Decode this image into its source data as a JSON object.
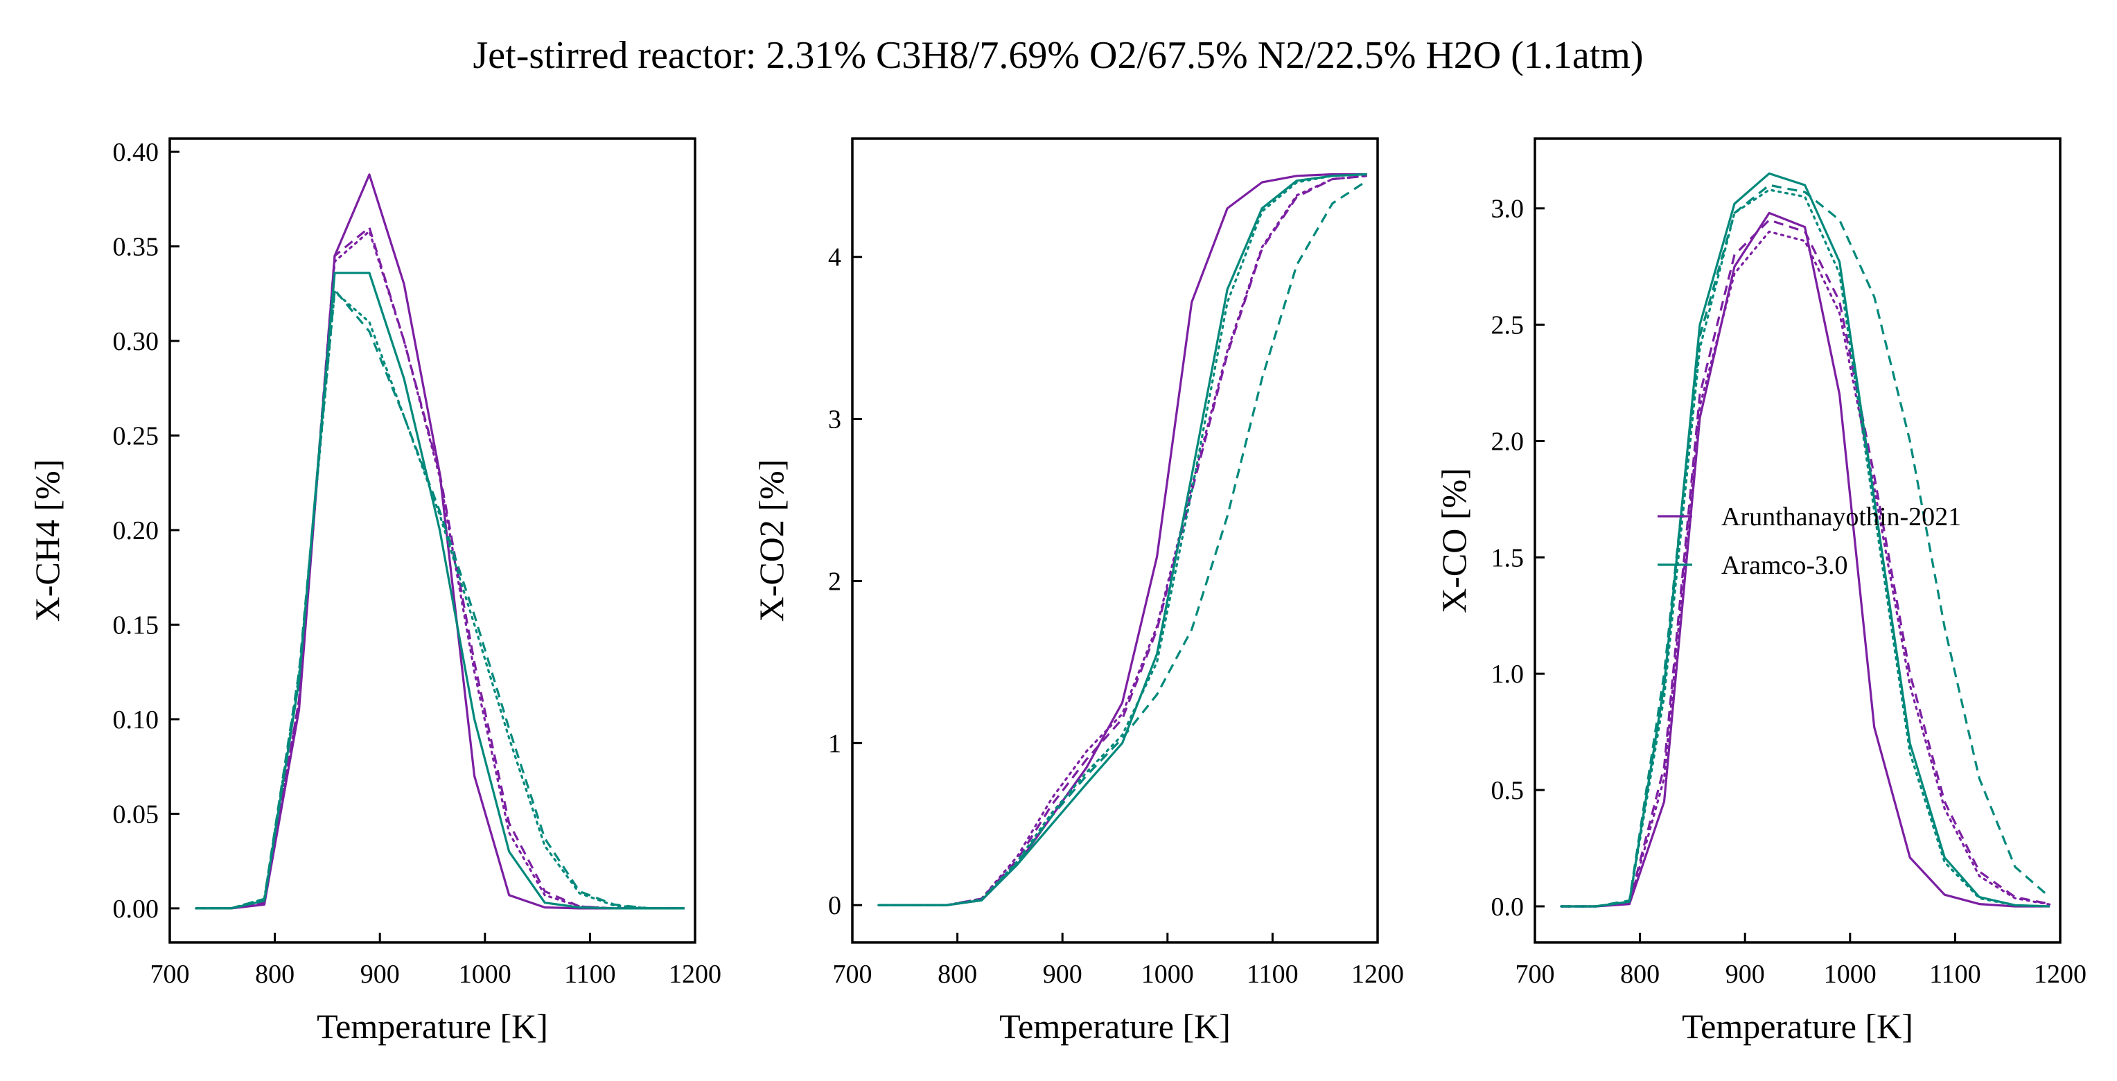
{
  "chart_data": {
    "title": "Jet-stirred reactor: 2.31% C3H8/7.69% O2/67.5% N2/22.5% H2O (1.1atm)",
    "legend": {
      "placement": "center-right of third panel",
      "entries": [
        {
          "name": "Arunthanayothin-2021",
          "color": "#7b1fa2"
        },
        {
          "name": "Aramco-3.0",
          "color": "#00897b"
        }
      ]
    },
    "panels": [
      {
        "type": "line",
        "xlabel": "Temperature [K]",
        "ylabel": "X-CH4 [%]",
        "xlim": [
          700,
          1200
        ],
        "ylim": [
          -0.018,
          0.407
        ],
        "xticks": [
          700,
          800,
          900,
          1000,
          1100,
          1200
        ],
        "yticks": [
          0.0,
          0.05,
          0.1,
          0.15,
          0.2,
          0.25,
          0.3,
          0.35,
          0.4
        ],
        "ytick_labels": [
          "0.00",
          "0.05",
          "0.10",
          "0.15",
          "0.20",
          "0.25",
          "0.30",
          "0.35",
          "0.40"
        ],
        "x": [
          725,
          758,
          790,
          823,
          857,
          890,
          923,
          957,
          990,
          1023,
          1057,
          1090,
          1123,
          1157,
          1190
        ],
        "series": [
          {
            "model": "Arunthanayothin-2021",
            "style": "solid",
            "color": "#7b1fa2",
            "values": [
              0,
              0,
              0.002,
              0.105,
              0.345,
              0.388,
              0.33,
              0.23,
              0.07,
              0.007,
              0.0005,
              0,
              0,
              0,
              0
            ]
          },
          {
            "model": "Arunthanayothin-2021",
            "style": "dashed",
            "color": "#7b1fa2",
            "values": [
              0,
              0,
              0.003,
              0.11,
              0.345,
              0.36,
              0.3,
              0.23,
              0.13,
              0.045,
              0.009,
              0.001,
              0,
              0,
              0
            ]
          },
          {
            "model": "Arunthanayothin-2021",
            "style": "dotted",
            "color": "#7b1fa2",
            "values": [
              0,
              0,
              0.003,
              0.11,
              0.342,
              0.358,
              0.3,
              0.228,
              0.125,
              0.04,
              0.007,
              0.001,
              0,
              0,
              0
            ]
          },
          {
            "model": "Aramco-3.0",
            "style": "solid",
            "color": "#00897b",
            "values": [
              0,
              0,
              0.004,
              0.12,
              0.336,
              0.336,
              0.28,
              0.2,
              0.1,
              0.03,
              0.003,
              0.0005,
              0,
              0,
              0
            ]
          },
          {
            "model": "Aramco-3.0",
            "style": "dashed",
            "color": "#00897b",
            "values": [
              0,
              0,
              0.005,
              0.125,
              0.327,
              0.305,
              0.26,
              0.21,
              0.155,
              0.095,
              0.037,
              0.009,
              0.002,
              0,
              0
            ]
          },
          {
            "model": "Aramco-3.0",
            "style": "dotted",
            "color": "#00897b",
            "values": [
              0,
              0,
              0.005,
              0.123,
              0.326,
              0.31,
              0.26,
              0.208,
              0.15,
              0.09,
              0.033,
              0.008,
              0.0015,
              0,
              0
            ]
          }
        ]
      },
      {
        "type": "line",
        "xlabel": "Temperature [K]",
        "ylabel": "X-CO2 [%]",
        "xlim": [
          700,
          1200
        ],
        "ylim": [
          -0.23,
          4.73
        ],
        "xticks": [
          700,
          800,
          900,
          1000,
          1100,
          1200
        ],
        "yticks": [
          0,
          1,
          2,
          3,
          4
        ],
        "ytick_labels": [
          "0",
          "1",
          "2",
          "3",
          "4"
        ],
        "x": [
          725,
          758,
          790,
          823,
          857,
          890,
          923,
          957,
          990,
          1023,
          1057,
          1090,
          1123,
          1157,
          1190
        ],
        "series": [
          {
            "model": "Arunthanayothin-2021",
            "style": "solid",
            "color": "#7b1fa2",
            "values": [
              0,
              0,
              0,
              0.03,
              0.25,
              0.55,
              0.85,
              1.25,
              2.15,
              3.72,
              4.3,
              4.46,
              4.5,
              4.51,
              4.51
            ]
          },
          {
            "model": "Arunthanayothin-2021",
            "style": "dashed",
            "color": "#7b1fa2",
            "values": [
              0,
              0,
              0,
              0.04,
              0.28,
              0.62,
              0.9,
              1.15,
              1.7,
              2.55,
              3.4,
              4.05,
              4.37,
              4.48,
              4.5
            ]
          },
          {
            "model": "Arunthanayothin-2021",
            "style": "dotted",
            "color": "#7b1fa2",
            "values": [
              0,
              0,
              0,
              0.04,
              0.3,
              0.66,
              0.95,
              1.18,
              1.72,
              2.58,
              3.42,
              4.06,
              4.38,
              4.48,
              4.5
            ]
          },
          {
            "model": "Aramco-3.0",
            "style": "solid",
            "color": "#00897b",
            "values": [
              0,
              0,
              0,
              0.03,
              0.25,
              0.5,
              0.75,
              1.0,
              1.55,
              2.65,
              3.8,
              4.3,
              4.47,
              4.5,
              4.51
            ]
          },
          {
            "model": "Aramco-3.0",
            "style": "dashed",
            "color": "#00897b",
            "values": [
              0,
              0,
              0,
              0.03,
              0.26,
              0.55,
              0.8,
              1.03,
              1.3,
              1.7,
              2.4,
              3.25,
              3.95,
              4.33,
              4.47
            ]
          },
          {
            "model": "Aramco-3.0",
            "style": "dotted",
            "color": "#00897b",
            "values": [
              0,
              0,
              0,
              0.035,
              0.27,
              0.57,
              0.82,
              1.05,
              1.5,
              2.55,
              3.72,
              4.28,
              4.46,
              4.5,
              4.51
            ]
          }
        ]
      },
      {
        "type": "line",
        "xlabel": "Temperature [K]",
        "ylabel": "X-CO [%]",
        "xlim": [
          700,
          1200
        ],
        "ylim": [
          -0.155,
          3.3
        ],
        "xticks": [
          700,
          800,
          900,
          1000,
          1100,
          1200
        ],
        "yticks": [
          0.0,
          0.5,
          1.0,
          1.5,
          2.0,
          2.5,
          3.0
        ],
        "ytick_labels": [
          "0.0",
          "0.5",
          "1.0",
          "1.5",
          "2.0",
          "2.5",
          "3.0"
        ],
        "x": [
          725,
          758,
          790,
          823,
          857,
          890,
          923,
          957,
          990,
          1023,
          1057,
          1090,
          1123,
          1157,
          1190
        ],
        "series": [
          {
            "model": "Arunthanayothin-2021",
            "style": "solid",
            "color": "#7b1fa2",
            "values": [
              0,
              0,
              0.01,
              0.45,
              2.1,
              2.75,
              2.98,
              2.92,
              2.2,
              0.77,
              0.21,
              0.05,
              0.01,
              0,
              0
            ]
          },
          {
            "model": "Arunthanayothin-2021",
            "style": "dashed",
            "color": "#7b1fa2",
            "values": [
              0,
              0,
              0.015,
              0.6,
              2.2,
              2.8,
              2.95,
              2.9,
              2.6,
              1.85,
              1.0,
              0.45,
              0.15,
              0.04,
              0.01
            ]
          },
          {
            "model": "Arunthanayothin-2021",
            "style": "dotted",
            "color": "#7b1fa2",
            "values": [
              0,
              0,
              0.012,
              0.55,
              2.15,
              2.72,
              2.9,
              2.86,
              2.55,
              1.8,
              0.95,
              0.42,
              0.13,
              0.035,
              0.008
            ]
          },
          {
            "model": "Aramco-3.0",
            "style": "solid",
            "color": "#00897b",
            "values": [
              0,
              0,
              0.02,
              0.95,
              2.5,
              3.02,
              3.15,
              3.1,
              2.77,
              1.75,
              0.7,
              0.21,
              0.04,
              0.005,
              0
            ]
          },
          {
            "model": "Aramco-3.0",
            "style": "dashed",
            "color": "#00897b",
            "values": [
              0,
              0,
              0.025,
              1.0,
              2.45,
              2.98,
              3.1,
              3.07,
              2.95,
              2.62,
              2.0,
              1.2,
              0.55,
              0.17,
              0.04
            ]
          },
          {
            "model": "Aramco-3.0",
            "style": "dotted",
            "color": "#00897b",
            "values": [
              0,
              0,
              0.02,
              0.9,
              2.4,
              2.98,
              3.08,
              3.05,
              2.72,
              1.7,
              0.66,
              0.19,
              0.035,
              0.004,
              0
            ]
          }
        ]
      }
    ]
  }
}
